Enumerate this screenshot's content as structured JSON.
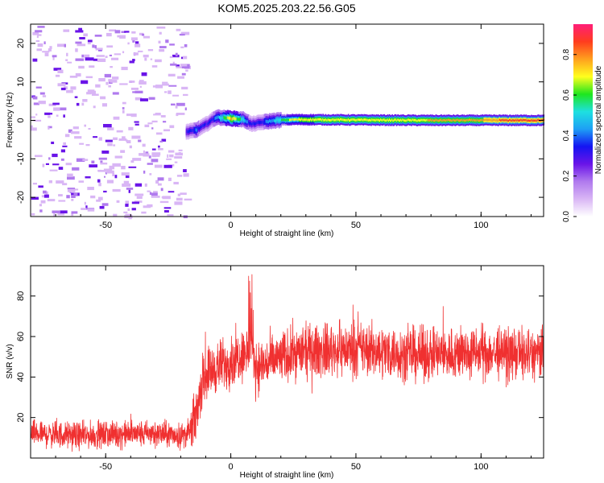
{
  "title": "KOM5.2025.203.22.56.G05",
  "colors": {
    "snr_line": "#f03030",
    "frame": "#000000",
    "background": "#ffffff"
  },
  "colormap": [
    "#ffffff",
    "#d9b6f5",
    "#b07aee",
    "#6a14e8",
    "#1414f2",
    "#1ea0f5",
    "#1ee0e0",
    "#1ee61e",
    "#ffff1e",
    "#ffa01e",
    "#ff3c1e",
    "#ff1e78"
  ],
  "chart_data": [
    {
      "type": "heatmap",
      "title": "KOM5.2025.203.22.56.G05",
      "xlabel": "Height of straight line (km)",
      "ylabel": "Frequency (Hz)",
      "xlim": [
        -80,
        125
      ],
      "ylim": [
        -25,
        25
      ],
      "x_ticks": [
        -50,
        0,
        50,
        100
      ],
      "y_ticks": [
        -20,
        -10,
        0,
        10,
        20
      ],
      "colorbar": {
        "label": "Normalized spectral amplitude",
        "range": [
          0,
          0.95
        ],
        "ticks": [
          0.0,
          0.2,
          0.4,
          0.6,
          0.8
        ]
      },
      "noise_region": {
        "x": [
          -80,
          -18
        ],
        "y": [
          -25,
          25
        ],
        "amplitude": [
          0.03,
          0.25
        ]
      },
      "ridge": [
        {
          "x": -18,
          "y": -3,
          "amp": 0.3
        },
        {
          "x": -14,
          "y": -2.5,
          "amp": 0.4
        },
        {
          "x": -10,
          "y": -1,
          "amp": 0.3
        },
        {
          "x": -6,
          "y": 0.8,
          "amp": 0.4
        },
        {
          "x": 0,
          "y": 0.5,
          "amp": 0.75
        },
        {
          "x": 5,
          "y": 0.2,
          "amp": 0.5
        },
        {
          "x": 8,
          "y": -1,
          "amp": 0.3
        },
        {
          "x": 12,
          "y": -0.5,
          "amp": 0.35
        },
        {
          "x": 18,
          "y": 0,
          "amp": 0.5
        },
        {
          "x": 25,
          "y": 0.2,
          "amp": 0.7
        },
        {
          "x": 50,
          "y": 0.1,
          "amp": 0.72
        },
        {
          "x": 75,
          "y": 0,
          "amp": 0.72
        },
        {
          "x": 95,
          "y": 0,
          "amp": 0.8
        },
        {
          "x": 125,
          "y": 0,
          "amp": 0.85
        }
      ]
    },
    {
      "type": "line",
      "xlabel": "Height of straight line (km)",
      "ylabel": "SNR (v/v)",
      "xlim": [
        -80,
        125
      ],
      "ylim": [
        0,
        95
      ],
      "x_ticks": [
        -50,
        0,
        50,
        100
      ],
      "y_ticks": [
        20,
        40,
        60,
        80
      ],
      "series": [
        {
          "x": [
            -80,
            -60,
            -40,
            -30,
            -20,
            -17,
            -14,
            -12,
            -10,
            -5,
            0,
            5,
            8,
            10,
            15,
            25,
            50,
            75,
            100,
            125
          ],
          "values": [
            12,
            11,
            12,
            12,
            11,
            12,
            20,
            35,
            42,
            45,
            48,
            52,
            55,
            45,
            47,
            52,
            54,
            51,
            52,
            51
          ]
        }
      ]
    }
  ]
}
